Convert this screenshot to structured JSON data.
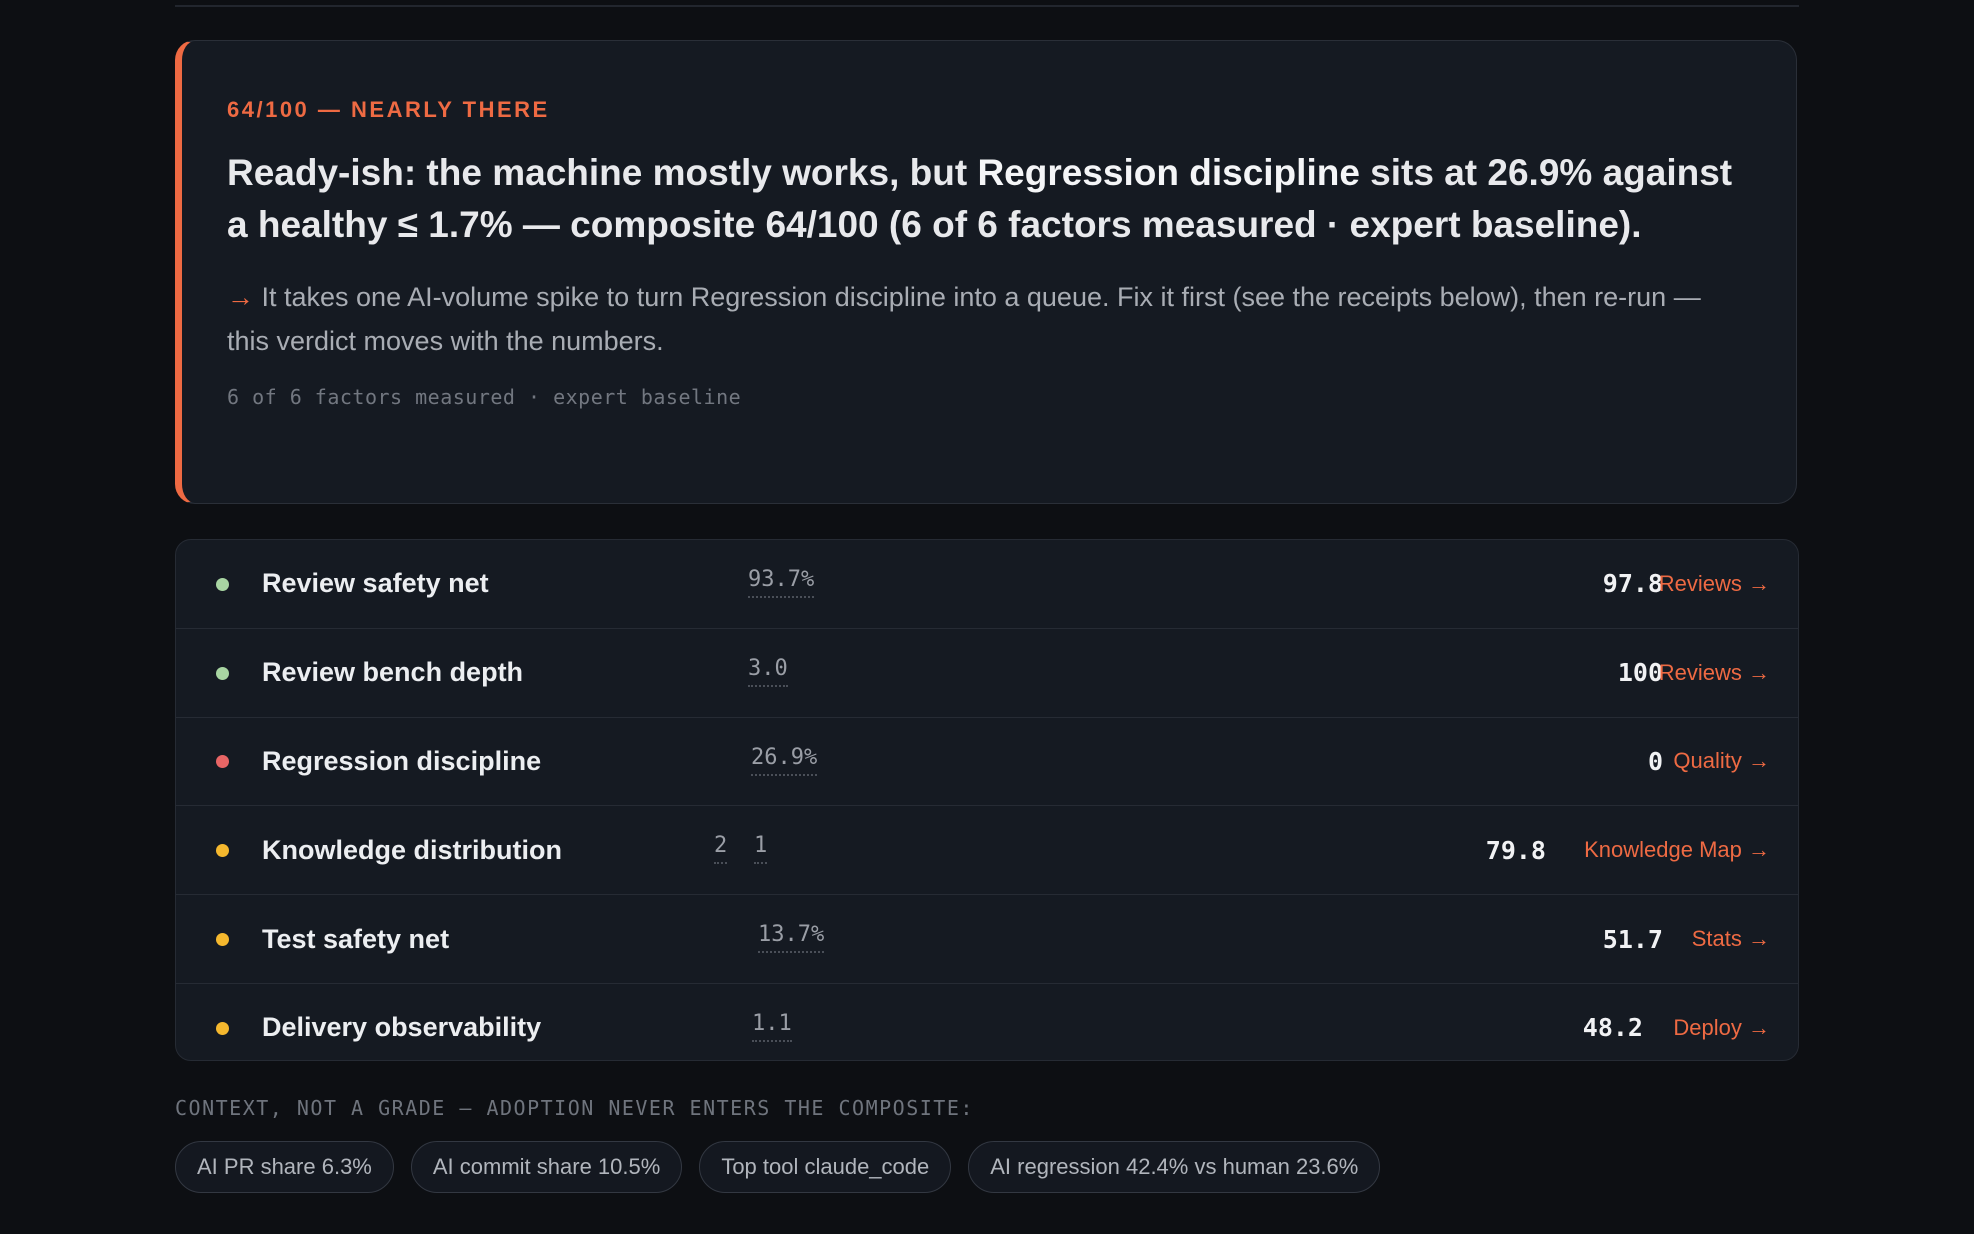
{
  "verdict": {
    "eyebrow": "64/100 — NEARLY THERE",
    "headline_pre": "Ready-ish: the machine mostly works, but ",
    "headline_strong": "Regression discipline",
    "headline_post": " sits at 26.9% against a healthy ≤ 1.7% — composite 64/100 (6 of 6 factors measured · expert baseline).",
    "advice_arrow": "→",
    "advice": " It takes one AI-volume spike to turn Regression discipline into a queue. Fix it first (see the receipts below), then re-run — this verdict moves with the numbers.",
    "basis": "6 of 6 factors measured · expert baseline"
  },
  "factors": [
    {
      "name": "Review safety net",
      "status": "good",
      "metric": "93.7%",
      "score": "97.8",
      "link": "Reviews →"
    },
    {
      "name": "Review bench depth",
      "status": "good",
      "metric": "3.0",
      "score": "100",
      "link": "Reviews →"
    },
    {
      "name": "Regression discipline",
      "status": "bad",
      "metric": "26.9%",
      "score": "0",
      "link": "Quality →"
    },
    {
      "name": "Knowledge distribution",
      "status": "warn",
      "metric_a": "2",
      "metric_b": "1",
      "score": "79.8",
      "link": "Knowledge Map →"
    },
    {
      "name": "Test safety net",
      "status": "warn",
      "metric": "13.7%",
      "score": "51.7",
      "link": "Stats →"
    },
    {
      "name": "Delivery observability",
      "status": "warn",
      "metric": "1.1",
      "score": "48.2",
      "link": "Deploy →"
    }
  ],
  "status_colors": {
    "good": "#a8d5a2",
    "bad": "#e86565",
    "warn": "#f5b82e"
  },
  "context": {
    "label": "CONTEXT, NOT A GRADE — ADOPTION NEVER ENTERS THE COMPOSITE:",
    "chips": [
      "AI PR share 6.3%",
      "AI commit share 10.5%",
      "Top tool claude_code",
      "AI regression 42.4% vs human 23.6%"
    ]
  }
}
